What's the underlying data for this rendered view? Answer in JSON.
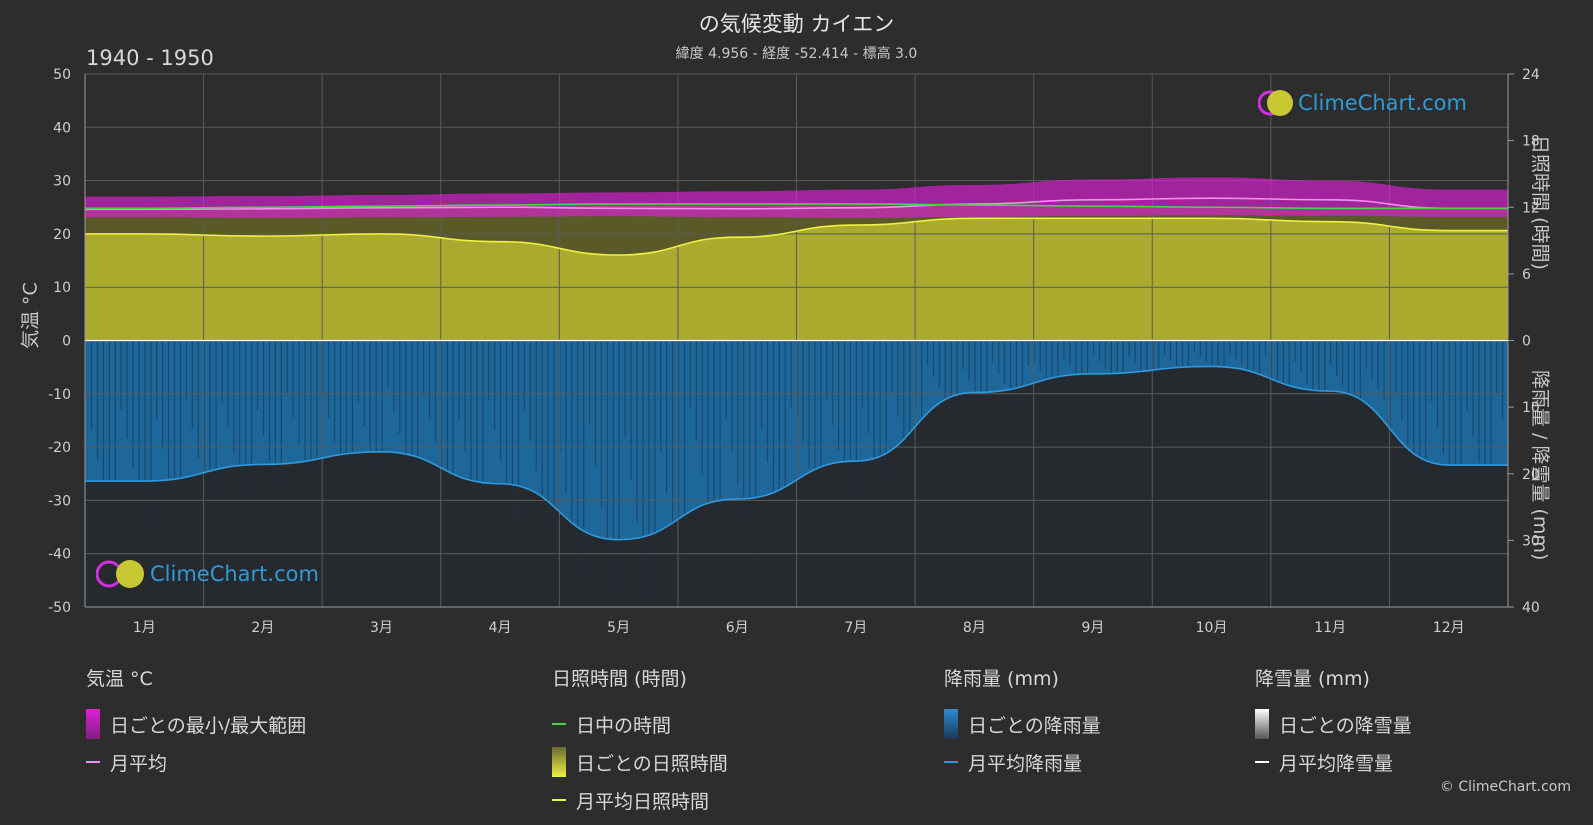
{
  "title": "の気候変動 カイエン",
  "subtitle": "緯度 4.956 - 経度 -52.414 - 標高 3.0",
  "period": "1940 - 1950",
  "copyright": "© ClimeChart.com",
  "logo_text": "ClimeChart.com",
  "colors": {
    "background": "#2d2d2d",
    "temp_range": "#e020d8",
    "temp_avg": "#f090f0",
    "daylight": "#4cd04c",
    "sunshine_fill": "#b8b830",
    "sunshine_line": "#f0f040",
    "rain_fill": "#1d6ea6",
    "rain_line": "#2f9ae0",
    "snow_line": "#ffffff"
  },
  "legend": {
    "temperature": {
      "heading": "気温 °C",
      "range": "日ごとの最小/最大範囲",
      "avg": "月平均"
    },
    "sunshine": {
      "heading": "日照時間 (時間)",
      "daylight": "日中の時間",
      "daily": "日ごとの日照時間",
      "avg": "月平均日照時間"
    },
    "rain": {
      "heading": "降雨量 (mm)",
      "daily": "日ごとの降雨量",
      "avg": "月平均降雨量"
    },
    "snow": {
      "heading": "降雪量 (mm)",
      "daily": "日ごとの降雪量",
      "avg": "月平均降雪量"
    }
  },
  "chart_data": {
    "type": "area",
    "categories": [
      "1月",
      "2月",
      "3月",
      "4月",
      "5月",
      "6月",
      "7月",
      "8月",
      "9月",
      "10月",
      "11月",
      "12月"
    ],
    "y_left": {
      "label": "気温 °C",
      "range": [
        -50,
        50
      ],
      "ticks": [
        50,
        40,
        30,
        20,
        10,
        0,
        -10,
        -20,
        -30,
        -40,
        -50
      ]
    },
    "y_right_top": {
      "label": "日照時間 (時間)",
      "range": [
        0,
        24
      ],
      "ticks": [
        24,
        18,
        12,
        6,
        0
      ]
    },
    "y_right_bottom": {
      "label": "降雨量 / 降雪量 (mm)",
      "range": [
        0,
        40
      ],
      "ticks": [
        0,
        10,
        20,
        30,
        40
      ]
    },
    "series": [
      {
        "name": "日ごとの最小/最大範囲",
        "unit": "°C",
        "min": [
          23.1,
          23.0,
          23.1,
          23.2,
          23.3,
          23.1,
          23.0,
          23.2,
          23.4,
          23.5,
          23.4,
          23.2
        ],
        "max": [
          27.0,
          27.1,
          27.3,
          27.6,
          27.8,
          28.0,
          28.3,
          29.2,
          30.2,
          30.6,
          30.0,
          28.3
        ]
      },
      {
        "name": "月平均",
        "unit": "°C",
        "values": [
          24.6,
          24.7,
          24.9,
          25.0,
          24.8,
          24.7,
          24.9,
          25.6,
          26.4,
          26.7,
          26.4,
          24.8
        ]
      },
      {
        "name": "日中の時間",
        "unit": "h",
        "values": [
          11.9,
          12.0,
          12.1,
          12.2,
          12.3,
          12.3,
          12.3,
          12.2,
          12.1,
          12.0,
          11.9,
          11.9
        ]
      },
      {
        "name": "月平均日照時間",
        "unit": "h",
        "values": [
          9.6,
          9.4,
          9.6,
          8.9,
          7.7,
          9.3,
          10.4,
          11.0,
          11.0,
          11.0,
          10.7,
          9.9
        ]
      },
      {
        "name": "月平均降雨量",
        "unit": "mm",
        "values": [
          21.1,
          18.6,
          16.7,
          21.5,
          29.9,
          23.8,
          18.1,
          7.8,
          5.0,
          3.9,
          7.6,
          18.7
        ]
      },
      {
        "name": "月平均降雪量",
        "unit": "mm",
        "values": [
          0,
          0,
          0,
          0,
          0,
          0,
          0,
          0,
          0,
          0,
          0,
          0
        ]
      }
    ],
    "grid": true
  }
}
